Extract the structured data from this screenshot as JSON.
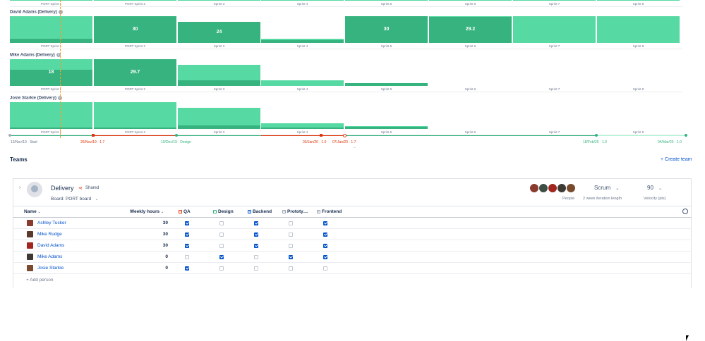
{
  "sprints": [
    "PORT Sprint 1",
    "PORT Sprint 2",
    "Sprint 3",
    "Sprint 4",
    "Sprint 5",
    "Sprint 6",
    "Sprint 7",
    "Sprint 8"
  ],
  "people_rows": [
    {
      "name": "David Adams (Delivery)",
      "values": [
        "",
        "30",
        "24",
        "",
        "30",
        "29.2",
        "",
        ""
      ],
      "levels": [
        0.15,
        1.0,
        0.8,
        0.1,
        1.0,
        0.97,
        0.0,
        0.0
      ],
      "caps": [
        1.0,
        1.0,
        0.8,
        0.15,
        1.0,
        1.0,
        1.0,
        1.0
      ]
    },
    {
      "name": "Mike Adams (Delivery)",
      "values": [
        "18",
        "29.7",
        "",
        "",
        "",
        "",
        "",
        ""
      ],
      "levels": [
        0.6,
        0.99,
        0.2,
        0.0,
        0.1,
        0.0,
        0.0,
        0.0
      ],
      "caps": [
        1.0,
        1.0,
        0.8,
        0.2,
        0.1,
        0.0,
        0.0,
        0.0
      ]
    },
    {
      "name": "Josie Starkie (Delivery)",
      "values": [
        "",
        "",
        "",
        "",
        "",
        "",
        "",
        ""
      ],
      "levels": [
        0.02,
        0.05,
        0.12,
        0.05,
        0.08,
        0.0,
        0.0,
        0.0
      ],
      "caps": [
        1.0,
        1.0,
        0.8,
        0.2,
        0.1,
        0.0,
        0.0,
        0.0
      ]
    }
  ],
  "timeline": {
    "dates": [
      {
        "text": "13/Nov/19 · Start",
        "color": "#6b778c"
      },
      {
        "text": "26/Nov/19 · 1.7",
        "color": "#de350b"
      },
      {
        "text": "10/Dec/19 · Design",
        "color": "#36b37e"
      },
      {
        "text": "03/Jan/20 · 1.0",
        "color": "#de350b"
      },
      {
        "text": "07/Jan/20 · 1.7",
        "color": "#de350b"
      },
      {
        "text": "18/Feb/20 · 1.0",
        "color": "#36b37e"
      },
      {
        "text": "04/Mar/20 · 1.0",
        "color": "#36b37e"
      }
    ],
    "ellipsis": "..."
  },
  "teams_section": {
    "title": "Teams",
    "create_label": "+ Create team"
  },
  "team": {
    "name": "Delivery",
    "shared_label": "Shared",
    "board_label": "Board: PORT board",
    "people_label": "People",
    "method": "Scrum",
    "iteration_label": "2 week iteration length",
    "velocity": "90",
    "velocity_label": "Velocity (pts)"
  },
  "table": {
    "headers": {
      "name": "Name",
      "hours": "Weekly hours",
      "skills": [
        "QA",
        "Design",
        "Backend",
        "Prototy…",
        "Frontend"
      ]
    },
    "rows": [
      {
        "name": "Ashley Tucker",
        "hours": "30",
        "skills": [
          true,
          false,
          true,
          false,
          true
        ],
        "avatar": "#8a3b2e"
      },
      {
        "name": "Mike Rudge",
        "hours": "30",
        "skills": [
          true,
          false,
          true,
          false,
          true
        ],
        "avatar": "#5a3a2a"
      },
      {
        "name": "David Adams",
        "hours": "30",
        "skills": [
          true,
          false,
          true,
          false,
          true
        ],
        "avatar": "#a0261f"
      },
      {
        "name": "Mike Adams",
        "hours": "0",
        "skills": [
          false,
          true,
          false,
          true,
          true
        ],
        "avatar": "#3d3a35"
      },
      {
        "name": "Josie Starkie",
        "hours": "0",
        "skills": [
          true,
          false,
          false,
          false,
          false
        ],
        "avatar": "#7a4a2e"
      }
    ],
    "add_person": "+ Add person"
  }
}
